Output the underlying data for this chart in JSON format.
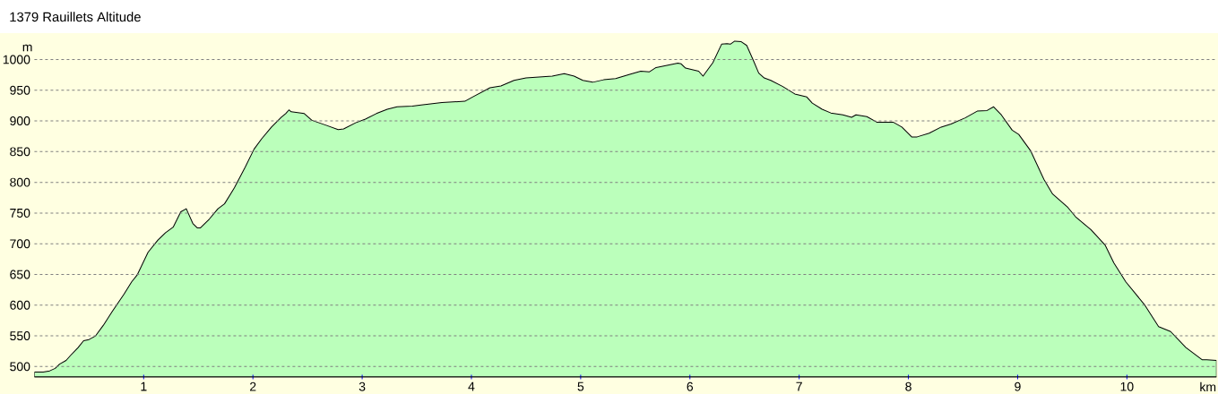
{
  "chart_data": {
    "type": "area",
    "title": "1379 Rauillets Altitude",
    "xlabel": "km",
    "ylabel": "m",
    "color": "#bbffbb",
    "x": [
      0,
      0.08,
      0.14,
      0.19,
      0.23,
      0.29,
      0.33,
      0.4,
      0.45,
      0.5,
      0.56,
      0.63,
      0.71,
      0.82,
      0.89,
      0.94,
      1.04,
      1.13,
      1.2,
      1.27,
      1.34,
      1.39,
      1.45,
      1.49,
      1.52,
      1.6,
      1.68,
      1.74,
      1.83,
      1.93,
      2.01,
      2.08,
      2.17,
      2.26,
      2.3,
      2.33,
      2.35,
      2.47,
      2.54,
      2.67,
      2.78,
      2.83,
      2.94,
      3.03,
      3.13,
      3.23,
      3.32,
      3.46,
      3.54,
      3.73,
      3.94,
      4.01,
      4.17,
      4.27,
      4.39,
      4.5,
      4.74,
      4.85,
      4.94,
      5.02,
      5.11,
      5.21,
      5.32,
      5.45,
      5.55,
      5.63,
      5.69,
      5.89,
      5.92,
      5.96,
      6.08,
      6.12,
      6.21,
      6.29,
      6.34,
      6.37,
      6.41,
      6.47,
      6.52,
      6.58,
      6.63,
      6.68,
      6.74,
      6.85,
      6.96,
      7.07,
      7.12,
      7.21,
      7.29,
      7.4,
      7.48,
      7.52,
      7.62,
      7.71,
      7.86,
      7.94,
      8.03,
      8.08,
      8.19,
      8.3,
      8.39,
      8.52,
      8.63,
      8.72,
      8.78,
      8.85,
      8.95,
      9.01,
      9.12,
      9.24,
      9.32,
      9.46,
      9.53,
      9.67,
      9.8,
      9.88,
      9.99,
      10.16,
      10.29,
      10.4,
      10.54,
      10.69,
      10.73,
      10.82
    ],
    "values": [
      491,
      491,
      493,
      497,
      504,
      510,
      518,
      531,
      542,
      544,
      550,
      567,
      589,
      618,
      638,
      649,
      686,
      706,
      718,
      727,
      752,
      757,
      733,
      726,
      726,
      740,
      757,
      765,
      791,
      825,
      854,
      871,
      890,
      906,
      912,
      918,
      915,
      912,
      901,
      893,
      886,
      887,
      897,
      903,
      912,
      919,
      923,
      924,
      926,
      930,
      932,
      939,
      954,
      957,
      966,
      970,
      973,
      977,
      973,
      966,
      963,
      967,
      969,
      976,
      981,
      980,
      987,
      994,
      993,
      986,
      981,
      973,
      995,
      1025,
      1026,
      1025,
      1030,
      1029,
      1023,
      999,
      978,
      970,
      966,
      956,
      944,
      939,
      929,
      919,
      913,
      910,
      906,
      910,
      907,
      898,
      898,
      890,
      874,
      874,
      880,
      890,
      895,
      905,
      916,
      917,
      923,
      910,
      885,
      878,
      851,
      805,
      781,
      759,
      744,
      723,
      698,
      669,
      638,
      601,
      565,
      557,
      531,
      511,
      511,
      510
    ],
    "xlim": [
      0,
      10.82
    ],
    "ylim": [
      483,
      1043
    ],
    "xticks": [
      1,
      2,
      3,
      4,
      5,
      6,
      7,
      8,
      9,
      10
    ],
    "yticks": [
      500,
      550,
      600,
      650,
      700,
      750,
      800,
      850,
      900,
      950,
      1000
    ],
    "grid": "y"
  }
}
